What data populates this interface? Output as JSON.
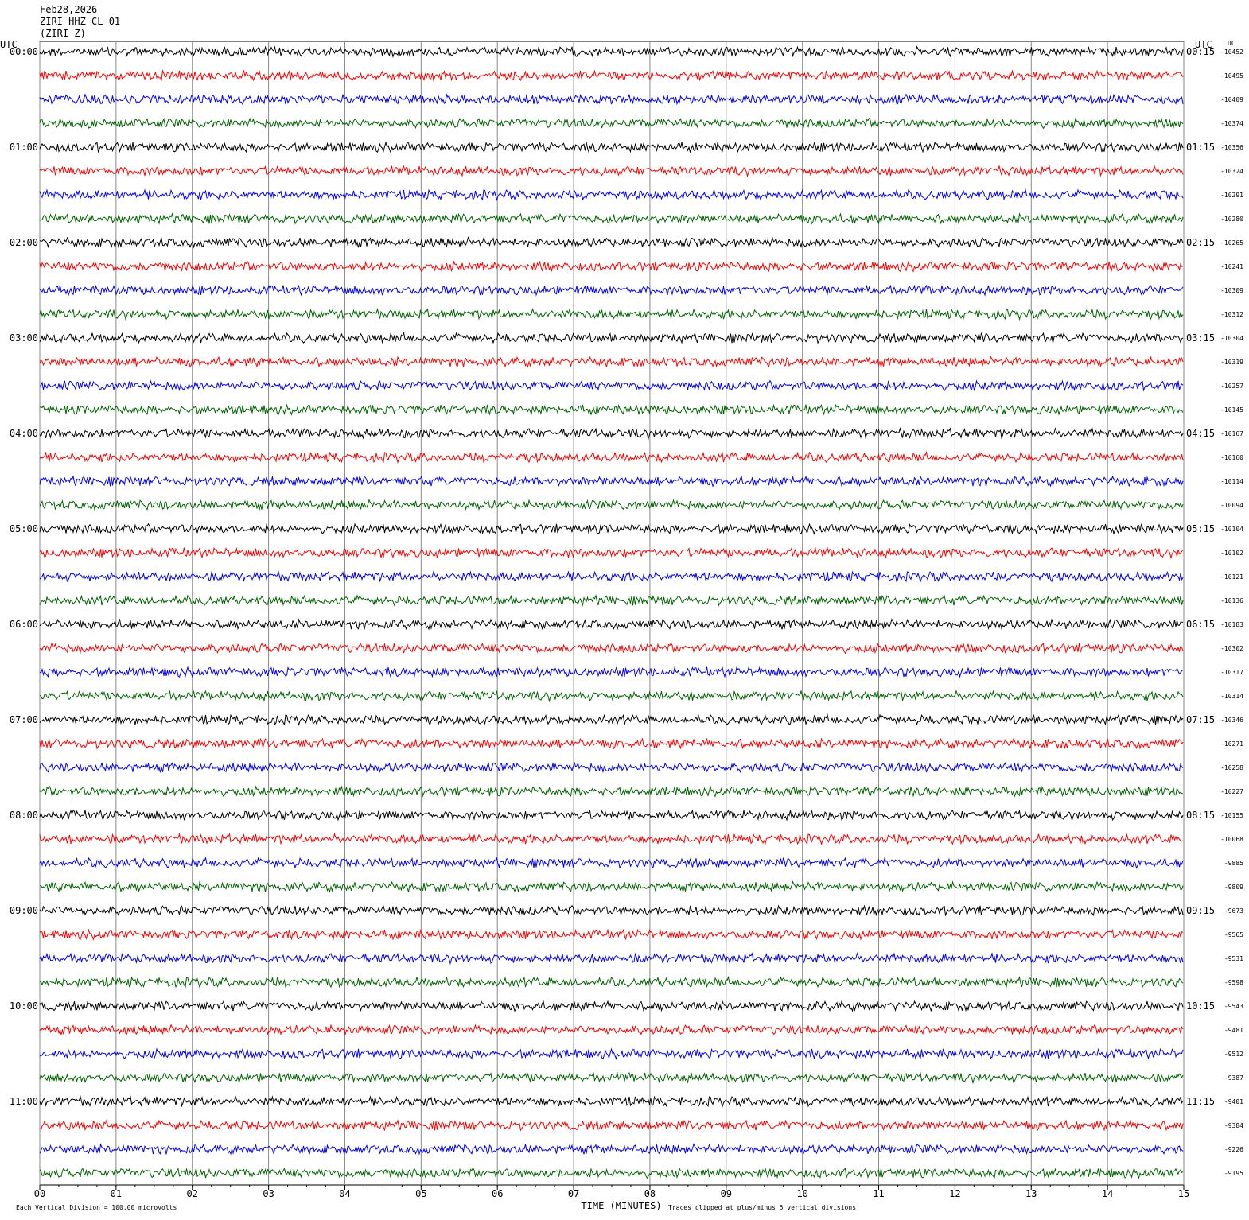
{
  "chart_data": {
    "type": "helicorder",
    "header": [
      "Feb28,2026",
      "ZIRI HHZ CL 01",
      "(ZIRI Z)"
    ],
    "left_axis_title": "UTC",
    "right_axis_title": "UTC",
    "dc_title": "DC",
    "left_labels": [
      "00:00",
      "01:00",
      "02:00",
      "03:00",
      "04:00",
      "05:00",
      "06:00",
      "07:00",
      "08:00",
      "09:00",
      "10:00",
      "11:00"
    ],
    "right_labels": [
      "00:15",
      "01:15",
      "02:15",
      "03:15",
      "04:15",
      "05:15",
      "06:15",
      "07:15",
      "08:15",
      "09:15",
      "10:15",
      "11:15"
    ],
    "dc_values": [
      -10452,
      -10495,
      -10409,
      -10374,
      -10356,
      -10324,
      -10291,
      -10280,
      -10265,
      -10241,
      -10309,
      -10312,
      -10304,
      -10319,
      -10257,
      -10145,
      -10167,
      -10160,
      -10114,
      -10094,
      -10104,
      -10102,
      -10121,
      -10136,
      -10183,
      -10302,
      -10317,
      -10314,
      -10346,
      -10271,
      -10258,
      -10227,
      -10155,
      -10068,
      -9885,
      -9809,
      -9673,
      -9565,
      -9531,
      -9598,
      -9543,
      -9481,
      -9512,
      -9387,
      -9401,
      -9384,
      -9226,
      -9195
    ],
    "trace_colors": [
      "#000000",
      "#ff0000",
      "#0000ff",
      "#006400"
    ],
    "xlim": [
      0,
      15
    ],
    "xticks": [
      {
        "value": 0,
        "label": "00"
      },
      {
        "value": 1,
        "label": "01"
      },
      {
        "value": 2,
        "label": "02"
      },
      {
        "value": 3,
        "label": "03"
      },
      {
        "value": 4,
        "label": "04"
      },
      {
        "value": 5,
        "label": "05"
      },
      {
        "value": 6,
        "label": "06"
      },
      {
        "value": 7,
        "label": "07"
      },
      {
        "value": 8,
        "label": "08"
      },
      {
        "value": 9,
        "label": "09"
      },
      {
        "value": 10,
        "label": "10"
      },
      {
        "value": 11,
        "label": "11"
      },
      {
        "value": 12,
        "label": "12"
      },
      {
        "value": 13,
        "label": "13"
      },
      {
        "value": 14,
        "label": "14"
      },
      {
        "value": 15,
        "label": "15"
      }
    ],
    "xlabel": "TIME (MINUTES)",
    "scale_note": "Each Vertical Division =  100.00 microvolts",
    "clip_note": "Traces clipped at plus/minus 5 vertical divisions",
    "grid": true
  }
}
